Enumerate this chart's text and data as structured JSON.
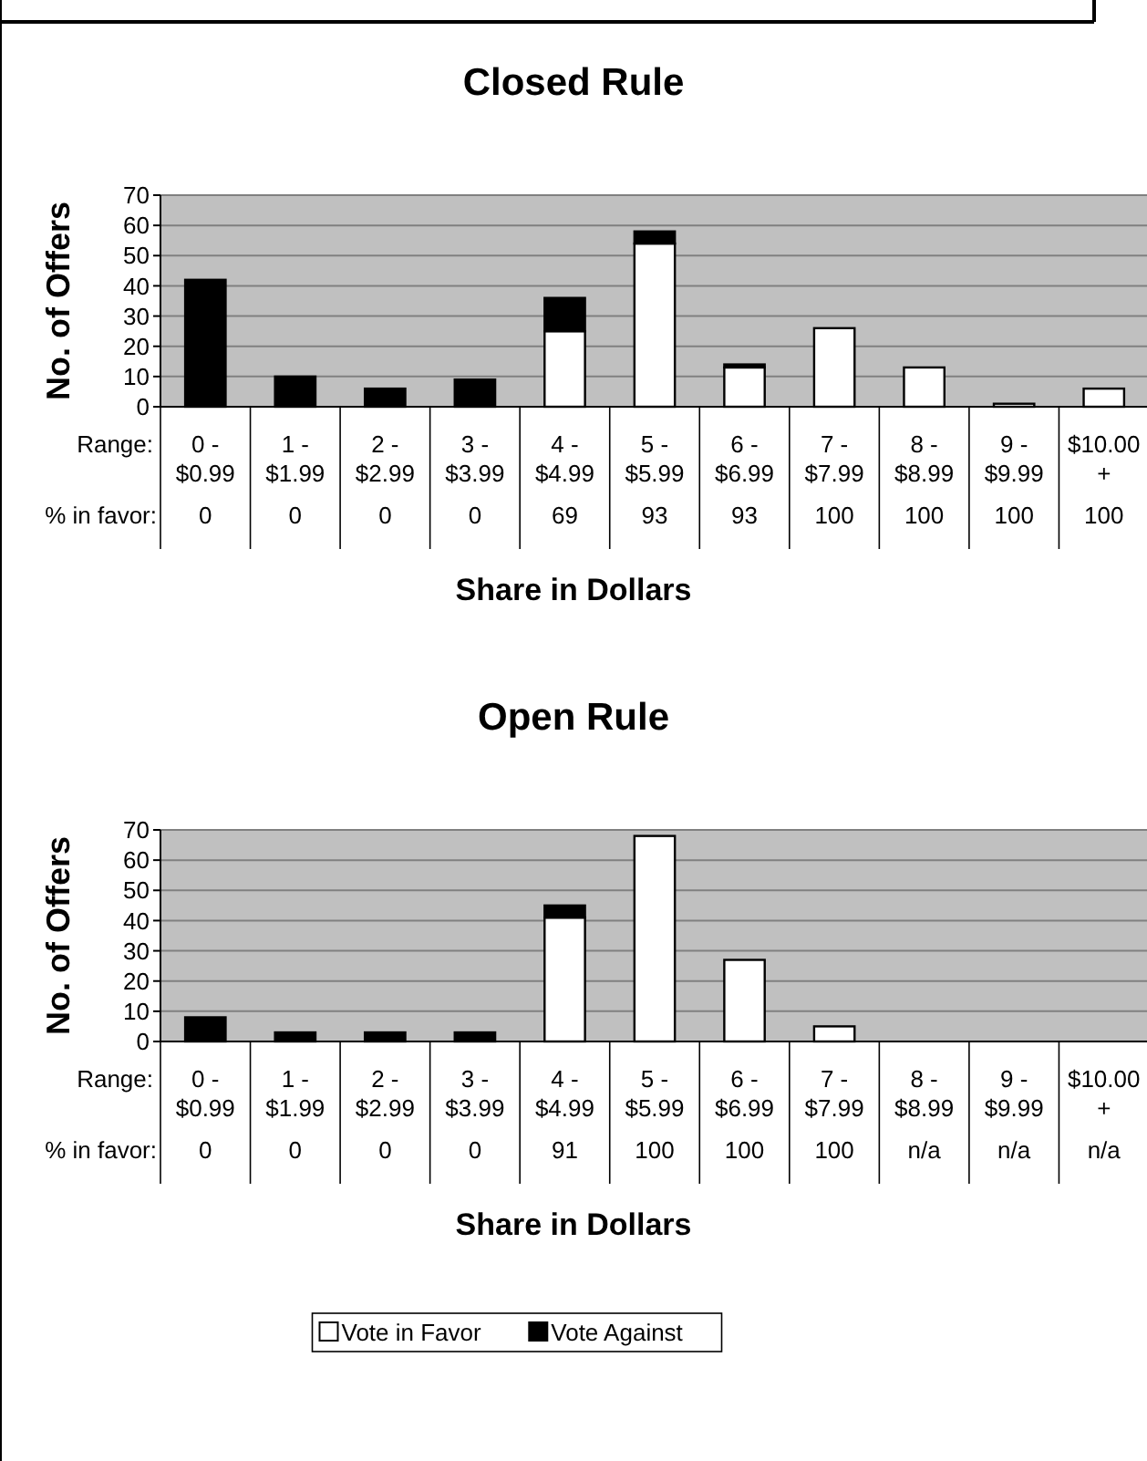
{
  "chart_data": [
    {
      "type": "bar",
      "title": "Closed Rule",
      "xlabel": "Share in Dollars",
      "ylabel": "No. of Offers",
      "stacked": true,
      "grid": "y",
      "ylim": [
        0,
        70
      ],
      "yticks": [
        0,
        10,
        20,
        30,
        40,
        50,
        60,
        70
      ],
      "categories": [
        "0 - $0.99",
        "1 - $1.99",
        "2 - $2.99",
        "3 - $3.99",
        "4 - $4.99",
        "5 - $5.99",
        "6 - $6.99",
        "7 - $7.99",
        "8 - $8.99",
        "9 - $9.99",
        "$10.00 +"
      ],
      "series": [
        {
          "color": "#ffffff",
          "values": [
            0,
            0,
            0,
            0,
            25,
            54,
            13,
            26,
            13,
            1,
            6
          ]
        },
        {
          "color": "#000000",
          "values": [
            42,
            10,
            6,
            9,
            11,
            4,
            1,
            0,
            0,
            0,
            0
          ]
        }
      ],
      "annotations": [
        "Range:",
        "% in favor:",
        "0",
        "0",
        "0",
        "0",
        "69",
        "93",
        "93",
        "100",
        "100",
        "100",
        "100"
      ]
    },
    {
      "type": "bar",
      "title": "Open Rule",
      "xlabel": "Share in Dollars",
      "ylabel": "No. of Offers",
      "stacked": true,
      "grid": "y",
      "legend": "bottom",
      "ylim": [
        0,
        70
      ],
      "yticks": [
        0,
        10,
        20,
        30,
        40,
        50,
        60,
        70
      ],
      "categories": [
        "0 - $0.99",
        "1 - $1.99",
        "2 - $2.99",
        "3 - $3.99",
        "4 - $4.99",
        "5 - $5.99",
        "6 - $6.99",
        "7 - $7.99",
        "8 - $8.99",
        "9 - $9.99",
        "$10.00 +"
      ],
      "series": [
        {
          "name": "Vote in Favor",
          "color": "#ffffff",
          "values": [
            0,
            0,
            0,
            0,
            41,
            68,
            27,
            5,
            0,
            0,
            0
          ]
        },
        {
          "name": "Vote Against",
          "color": "#000000",
          "values": [
            8,
            3,
            3,
            3,
            4,
            0,
            0,
            0,
            0,
            0,
            0
          ]
        }
      ],
      "annotations": [
        "Range:",
        "% in favor:",
        "0",
        "0",
        "0",
        "0",
        "91",
        "100",
        "100",
        "100",
        "n/a",
        "n/a",
        "n/a"
      ]
    }
  ]
}
